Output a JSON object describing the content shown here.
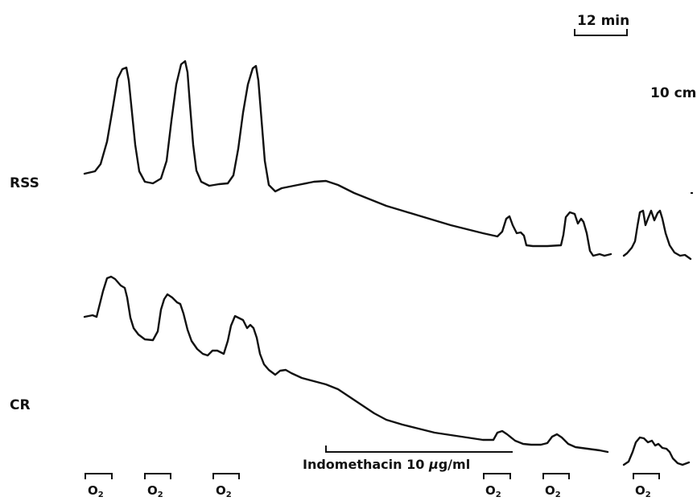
{
  "scale_bars": {
    "time": "12 min",
    "amplitude": "10 cm"
  },
  "traces": [
    {
      "label": "RSS"
    },
    {
      "label": "CR"
    }
  ],
  "drug_bar": {
    "drug": "Indomethacin",
    "concentration": "10",
    "unit_mu": "μ",
    "unit_rest": "g/ml"
  },
  "stimulus": {
    "base": "O",
    "subscript": "2",
    "count": 6
  },
  "colors": {
    "ink": "#111111",
    "background": "#ffffff"
  }
}
